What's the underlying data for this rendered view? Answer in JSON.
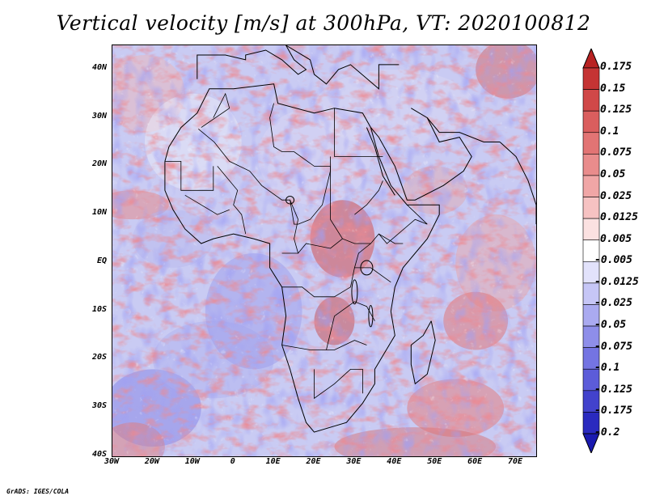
{
  "title": "Vertical velocity [m/s] at 300hPa, VT: 2020100812",
  "footer": "GrADS: IGES/COLA",
  "map": {
    "lat_labels": [
      "40N",
      "30N",
      "20N",
      "10N",
      "EQ",
      "10S",
      "20S",
      "30S",
      "40S"
    ],
    "lat_values": [
      40,
      30,
      20,
      10,
      0,
      -10,
      -20,
      -30,
      -40
    ],
    "lon_labels": [
      "30W",
      "20W",
      "10W",
      "0",
      "10E",
      "20E",
      "30E",
      "40E",
      "50E",
      "60E",
      "70E"
    ],
    "lon_values": [
      -30,
      -20,
      -10,
      0,
      10,
      20,
      30,
      40,
      50,
      60,
      70
    ],
    "extent": {
      "lon_min": -30,
      "lon_max": 75,
      "lat_min": -40,
      "lat_max": 45
    }
  },
  "colorbar": {
    "labels": [
      "0.175",
      "0.15",
      "0.125",
      "0.1",
      "0.075",
      "0.05",
      "0.025",
      "0.0125",
      "0.005",
      "-0.005",
      "-0.0125",
      "-0.025",
      "-0.05",
      "-0.075",
      "-0.1",
      "-0.125",
      "-0.175",
      "-0.2"
    ],
    "colors": [
      "#b82222",
      "#c53434",
      "#d04848",
      "#da5e5e",
      "#e27474",
      "#e98c8c",
      "#f0a6a6",
      "#f6c2c2",
      "#fbe1e1",
      "#ffffff",
      "#e2e2fb",
      "#c6c6f6",
      "#aaaaf0",
      "#8e8ee9",
      "#7474e2",
      "#5c5cd9",
      "#4242cc",
      "#2a2abf",
      "#1a1ab0"
    ]
  },
  "colors": {
    "ocean_base": "#cfd0f4",
    "land_base": "#dcd6ef",
    "border": "#000000"
  }
}
